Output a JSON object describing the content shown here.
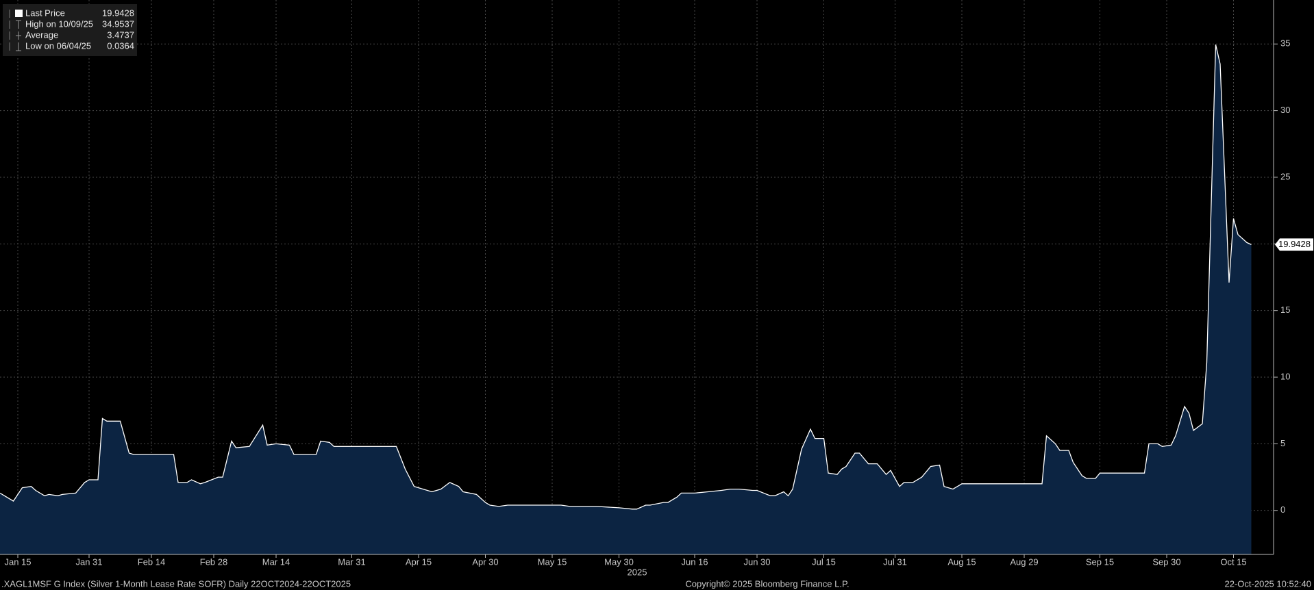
{
  "chart_data": {
    "type": "area",
    "x_axis_label": "2025",
    "footer_left": ".XAGL1MSF G Index (Silver 1-Month Lease Rate SOFR) Daily 22OCT2024-22OCT2025",
    "footer_center": "Copyright© 2025 Bloomberg Finance L.P.",
    "footer_right": "22-Oct-2025 10:52:40",
    "x": [
      11,
      12,
      14,
      16,
      18,
      19,
      21,
      22,
      24,
      25,
      28,
      30,
      31,
      33,
      34,
      35,
      38,
      40,
      41,
      50,
      51,
      53,
      54,
      56,
      57,
      60,
      61,
      63,
      64,
      67,
      70,
      71,
      73,
      76,
      77,
      82,
      83,
      85,
      86,
      98,
      100,
      102,
      104,
      106,
      108,
      110,
      112,
      114,
      115,
      118,
      120,
      121,
      123,
      125,
      131,
      137,
      139,
      145,
      150,
      153,
      154,
      156,
      157,
      160,
      161,
      163,
      164,
      167,
      170,
      173,
      175,
      177,
      180,
      181,
      184,
      185,
      187,
      188,
      189,
      191,
      193,
      194,
      196,
      197,
      199,
      200,
      201,
      203,
      204,
      206,
      208,
      210,
      211,
      213,
      214,
      216,
      218,
      220,
      222,
      223,
      225,
      227,
      228,
      230,
      233,
      237,
      240,
      245,
      246,
      248,
      249,
      251,
      252,
      254,
      255,
      257,
      258,
      260,
      263,
      268,
      269,
      271,
      272,
      274,
      275,
      277,
      278,
      279,
      281,
      282,
      284,
      285,
      287,
      288,
      289,
      291,
      292
    ],
    "series": [
      {
        "name": "Last Price",
        "color": "#ffffff",
        "fill": "#0c2442",
        "values": [
          1.3,
          1.1,
          0.7,
          1.7,
          1.8,
          1.5,
          1.1,
          1.2,
          1.1,
          1.2,
          1.3,
          2.1,
          2.3,
          2.3,
          6.9,
          6.7,
          6.7,
          4.3,
          4.2,
          4.2,
          2.1,
          2.1,
          2.3,
          2.0,
          2.1,
          2.5,
          2.5,
          5.2,
          4.7,
          4.8,
          6.4,
          4.9,
          5.0,
          4.9,
          4.2,
          4.2,
          5.2,
          5.1,
          4.8,
          4.8,
          4.8,
          3.1,
          1.8,
          1.6,
          1.4,
          1.6,
          2.1,
          1.8,
          1.4,
          1.2,
          0.6,
          0.4,
          0.3,
          0.4,
          0.4,
          0.4,
          0.3,
          0.3,
          0.2,
          0.1,
          0.1,
          0.4,
          0.4,
          0.6,
          0.6,
          1.0,
          1.3,
          1.3,
          1.4,
          1.5,
          1.6,
          1.6,
          1.5,
          1.5,
          1.1,
          1.1,
          1.4,
          1.1,
          1.6,
          4.6,
          6.1,
          5.4,
          5.4,
          2.8,
          2.7,
          3.1,
          3.3,
          4.3,
          4.3,
          3.5,
          3.5,
          2.7,
          3.0,
          1.8,
          2.1,
          2.1,
          2.5,
          3.3,
          3.4,
          1.8,
          1.6,
          2.0,
          2.0,
          2.0,
          2.0,
          2.0,
          2.0,
          2.0,
          5.6,
          5.0,
          4.5,
          4.5,
          3.6,
          2.6,
          2.4,
          2.4,
          2.8,
          2.8,
          2.8,
          2.8,
          5.0,
          5.0,
          4.8,
          4.9,
          5.6,
          7.8,
          7.3,
          6.0,
          6.5,
          11.1,
          34.9537,
          33.5,
          17.1,
          21.9,
          20.7,
          20.1,
          19.9428
        ]
      }
    ],
    "stats": [
      {
        "label": "High on 10/09/25",
        "value": 34.9537
      },
      {
        "label": "Average",
        "value": 3.4737
      },
      {
        "label": "Low on 06/04/25",
        "value": 0.0364
      }
    ],
    "xlim": [
      11,
      297
    ],
    "xticks": [
      {
        "value": 15,
        "label": "Jan 15"
      },
      {
        "value": 31,
        "label": "Jan 31"
      },
      {
        "value": 45,
        "label": "Feb 14"
      },
      {
        "value": 59,
        "label": "Feb 28"
      },
      {
        "value": 73,
        "label": "Mar 14"
      },
      {
        "value": 90,
        "label": "Mar 31"
      },
      {
        "value": 105,
        "label": "Apr 15"
      },
      {
        "value": 120,
        "label": "Apr 30"
      },
      {
        "value": 135,
        "label": "May 15"
      },
      {
        "value": 150,
        "label": "May 30"
      },
      {
        "value": 167,
        "label": "Jun 16"
      },
      {
        "value": 181,
        "label": "Jun 30"
      },
      {
        "value": 196,
        "label": "Jul 15"
      },
      {
        "value": 212,
        "label": "Jul 31"
      },
      {
        "value": 227,
        "label": "Aug 15"
      },
      {
        "value": 241,
        "label": "Aug 29"
      },
      {
        "value": 258,
        "label": "Sep 15"
      },
      {
        "value": 273,
        "label": "Sep 30"
      },
      {
        "value": 288,
        "label": "Oct 15"
      }
    ],
    "ylim": [
      -3.3,
      38.3
    ],
    "yticks": [
      0,
      5,
      10,
      15,
      20,
      25,
      30,
      35
    ],
    "grid": true
  }
}
